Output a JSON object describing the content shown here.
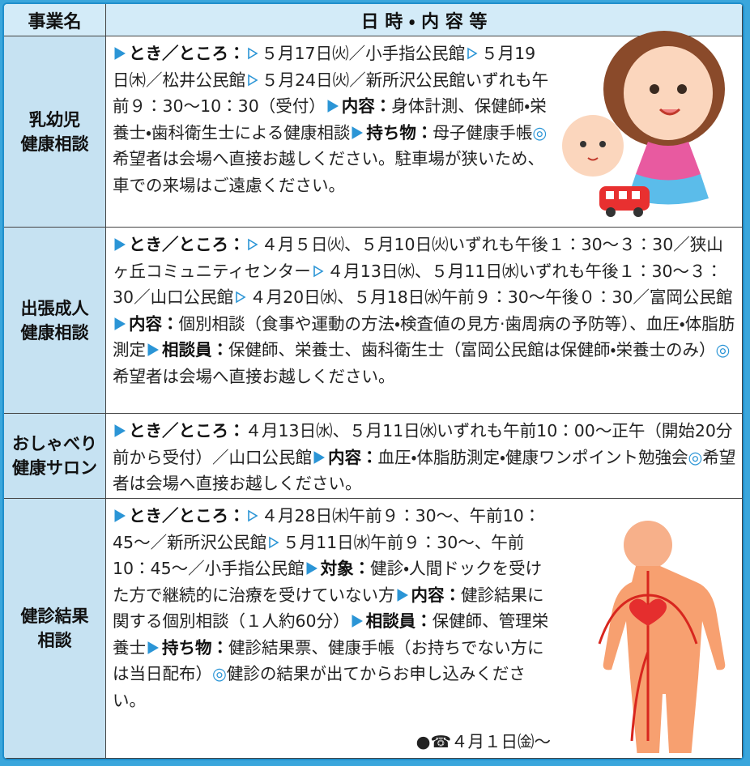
{
  "header": [
    "事業名",
    "日 時 ・ 内 容 等"
  ],
  "rows": [
    {
      "name": [
        "乳幼児",
        "健康相談"
      ],
      "runs": [
        {
          "kind": "label",
          "text": "とき／ところ："
        },
        {
          "kind": "place",
          "text": "５月17日㈫／小手指公民館"
        },
        {
          "kind": "place",
          "text": "５月19日㈭／松井公民館"
        },
        {
          "kind": "place",
          "text": "５月24日㈫／新所沢公民館いずれも午前９：30～10：30（受付）"
        },
        {
          "kind": "label",
          "text": "内容："
        },
        {
          "kind": "plain",
          "text": "身体計測、保健師・栄養士・歯科衛生士による健康相談"
        },
        {
          "kind": "label",
          "text": "持ち物："
        },
        {
          "kind": "plain",
          "text": "母子健康手帳"
        },
        {
          "kind": "mark",
          "text": "◎"
        },
        {
          "kind": "plain",
          "text": "希望者は会場へ直接お越しください。駐車場が狭いため、車での来場はご遠慮ください。"
        }
      ]
    },
    {
      "name": [
        "出張成人",
        "健康相談"
      ],
      "runs": [
        {
          "kind": "label",
          "text": "とき／ところ："
        },
        {
          "kind": "place",
          "text": "４月５日㈫、５月10日㈫いずれも午後１：30～３：30／狭山ヶ丘コミュニティセンター"
        },
        {
          "kind": "place",
          "text": "４月13日㈬、５月11日㈬いずれも午後１：30～３：30／山口公民館"
        },
        {
          "kind": "place",
          "text": "４月20日㈬、５月18日㈬午前９：30～午後０：30／富岡公民館"
        },
        {
          "kind": "label",
          "text": "内容："
        },
        {
          "kind": "plain",
          "text": "個別相談（食事や運動の方法・検査値の見方·歯周病の予防等）、血圧・体脂肪測定"
        },
        {
          "kind": "label",
          "text": "相談員："
        },
        {
          "kind": "plain",
          "text": "保健師、栄養士、歯科衛生士（富岡公民館は保健師・栄養士のみ）"
        },
        {
          "kind": "mark",
          "text": "◎"
        },
        {
          "kind": "plain",
          "text": "希望者は会場へ直接お越しください。"
        }
      ]
    },
    {
      "name": [
        "おしゃべり",
        "健康サロン"
      ],
      "runs": [
        {
          "kind": "label",
          "text": "とき／ところ："
        },
        {
          "kind": "plain",
          "text": "４月13日㈬、５月11日㈬いずれも午前10：00～正午（開始20分前から受付）／山口公民館"
        },
        {
          "kind": "label",
          "text": "内容："
        },
        {
          "kind": "plain",
          "text": "血圧・体脂肪測定・健康ワンポイント勉強会"
        },
        {
          "kind": "mark",
          "text": "◎"
        },
        {
          "kind": "plain",
          "text": "希望者は会場へ直接お越しください。"
        }
      ]
    },
    {
      "name": [
        "健診結果",
        "相談"
      ],
      "runs": [
        {
          "kind": "label",
          "text": "とき／ところ："
        },
        {
          "kind": "place",
          "text": "４月28日㈭午前９：30～、午前10：45～／新所沢公民館"
        },
        {
          "kind": "place",
          "text": "５月11日㈬午前９：30～、午前10：45～／小手指公民館"
        },
        {
          "kind": "label",
          "text": "対象："
        },
        {
          "kind": "plain",
          "text": "健診・人間ドックを受けた方で継続的に治療を受けていない方"
        },
        {
          "kind": "label",
          "text": "内容："
        },
        {
          "kind": "plain",
          "text": "健診結果に関する個別相談（１人約60分）"
        },
        {
          "kind": "label",
          "text": "相談員："
        },
        {
          "kind": "plain",
          "text": "保健師、管理栄養士"
        },
        {
          "kind": "label",
          "text": "持ち物："
        },
        {
          "kind": "plain",
          "text": "健診結果票、健康手帳（お持ちでない方には当日配布）"
        },
        {
          "kind": "mark",
          "text": "◎"
        },
        {
          "kind": "plain",
          "text": "健診の結果が出てからお申し込みください。"
        }
      ],
      "footer": "●☎４月１日㈮～"
    }
  ]
}
